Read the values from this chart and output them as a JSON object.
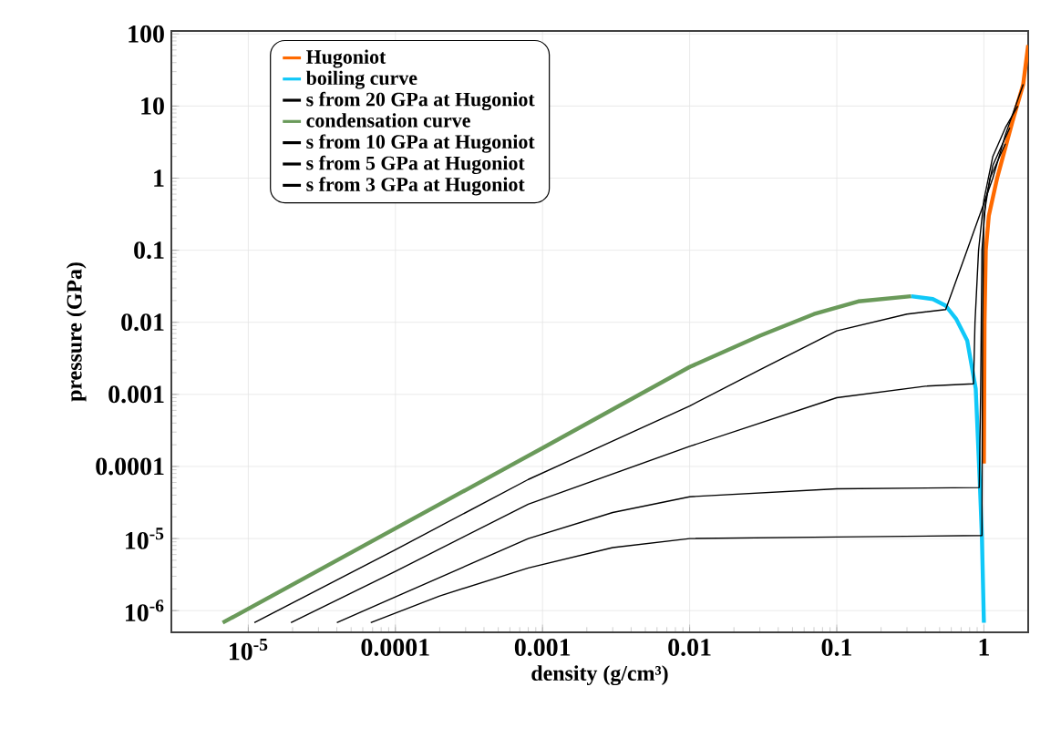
{
  "chart_data": {
    "type": "line",
    "xlabel": "density (g/cm³)",
    "ylabel": "pressure (GPa)",
    "log": "xy",
    "grid": true,
    "legend": "top left",
    "marker": "none",
    "line_style": "solid",
    "xlim": [
      3e-06,
      2
    ],
    "ylim": [
      5e-07,
      110
    ],
    "xticks": [
      {
        "value": 1e-05,
        "label": "10$^{-5}$"
      },
      0.0001,
      0.001,
      0.01,
      0.1,
      1
    ],
    "yticks": [
      {
        "value": 1e-06,
        "label": "10$^{-6}$"
      },
      {
        "value": 1e-05,
        "label": "10$^{-5}$"
      },
      0.0001,
      0.001,
      0.01,
      0.1,
      1,
      10,
      100
    ],
    "series": [
      {
        "name": "Hugoniot",
        "color": "#ff6a00",
        "x": [
          1.0,
          1.01,
          1.03,
          1.08,
          1.23,
          1.56,
          1.85,
          2.0
        ],
        "values": [
          0.00011,
          0.01,
          0.1,
          0.3,
          1,
          6,
          20,
          70
        ]
      },
      {
        "name": "boiling curve",
        "color": "#10c8f8",
        "x": [
          0.32,
          0.45,
          0.55,
          0.65,
          0.77,
          0.88,
          0.94,
          0.97,
          1.0
        ],
        "values": [
          0.023,
          0.021,
          0.017,
          0.011,
          0.0056,
          0.0012,
          5.4e-05,
          1e-05,
          6.8e-07
        ]
      },
      {
        "name": "s from 20 GPa at Hugoniot",
        "color": "#000000",
        "x": [
          1.1e-05,
          0.0001,
          0.0008,
          0.01,
          0.03,
          0.1,
          0.3,
          0.55,
          0.75,
          1.02,
          1.15,
          1.4,
          1.85
        ],
        "values": [
          6.8e-07,
          7e-06,
          6.6e-05,
          0.00069,
          0.0022,
          0.0076,
          0.013,
          0.015,
          0.087,
          0.5,
          1,
          4,
          20
        ]
      },
      {
        "name": "condensation curve",
        "color": "#6a9a5a",
        "x": [
          6.7e-06,
          0.001,
          0.01,
          0.03,
          0.07,
          0.14,
          0.32
        ],
        "values": [
          6.8e-07,
          0.00018,
          0.0024,
          0.0065,
          0.013,
          0.0195,
          0.023
        ]
      },
      {
        "name": "s from 10 GPa at Hugoniot",
        "color": "#000000",
        "x": [
          1.95e-05,
          0.0001,
          0.0008,
          0.01,
          0.1,
          0.4,
          0.85,
          0.87,
          0.92,
          1.0,
          1.15,
          1.4,
          1.7
        ],
        "values": [
          6.8e-07,
          3.5e-06,
          3e-05,
          0.00019,
          0.0009,
          0.0013,
          0.0014,
          0.01,
          0.1,
          0.5,
          2,
          5,
          10
        ]
      },
      {
        "name": "s from 5 GPa at Hugoniot",
        "color": "#000000",
        "x": [
          4e-05,
          0.0001,
          0.0008,
          0.003,
          0.01,
          0.1,
          0.93,
          0.95,
          0.97,
          1.03,
          1.15,
          1.5
        ],
        "values": [
          6.8e-07,
          1.55e-06,
          1e-05,
          2.3e-05,
          3.8e-05,
          4.9e-05,
          5.1e-05,
          0.001,
          0.1,
          0.5,
          1.5,
          5
        ]
      },
      {
        "name": "s from 3 GPa at Hugoniot",
        "color": "#000000",
        "x": [
          6.8e-05,
          0.0002,
          0.0008,
          0.003,
          0.01,
          0.1,
          0.97,
          0.98,
          1.0,
          1.1,
          1.4
        ],
        "values": [
          6.8e-07,
          1.6e-06,
          3.9e-06,
          7.5e-06,
          1e-05,
          1.05e-05,
          1.1e-05,
          0.01,
          0.3,
          1,
          3
        ]
      }
    ]
  }
}
